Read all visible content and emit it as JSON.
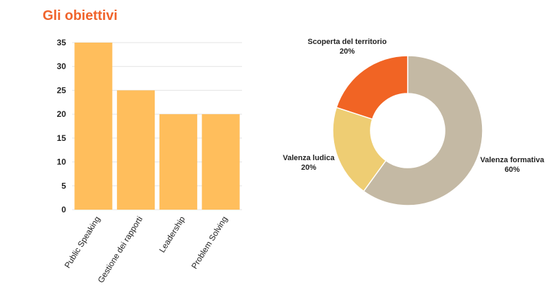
{
  "page": {
    "title": "Gli obiettivi"
  },
  "colors": {
    "title": "#f0642c",
    "bar": "#ffbe5c",
    "grid": "#e3e3e3",
    "donut_formativa": "#c4b9a4",
    "donut_ludica": "#eecd73",
    "donut_territorio": "#f16424"
  },
  "chart_data": [
    {
      "type": "bar",
      "categories": [
        "Public Speaking",
        "Gestione dei rapporti",
        "Leadership",
        "Problem Solving"
      ],
      "values": [
        35,
        25,
        20,
        20
      ],
      "title": "",
      "xlabel": "",
      "ylabel": "",
      "ylim": [
        0,
        35
      ],
      "yticks": [
        0,
        5,
        10,
        15,
        20,
        25,
        30,
        35
      ],
      "grid": true
    },
    {
      "type": "pie",
      "donut": true,
      "slices": [
        {
          "label": "Valenza formativa",
          "value": 60,
          "value_label": "60%",
          "color_key": "donut_formativa"
        },
        {
          "label": "Valenza ludica",
          "value": 20,
          "value_label": "20%",
          "color_key": "donut_ludica"
        },
        {
          "label": "Scoperta del territorio",
          "value": 20,
          "value_label": "20%",
          "color_key": "donut_territorio"
        }
      ],
      "legend": "none"
    }
  ]
}
